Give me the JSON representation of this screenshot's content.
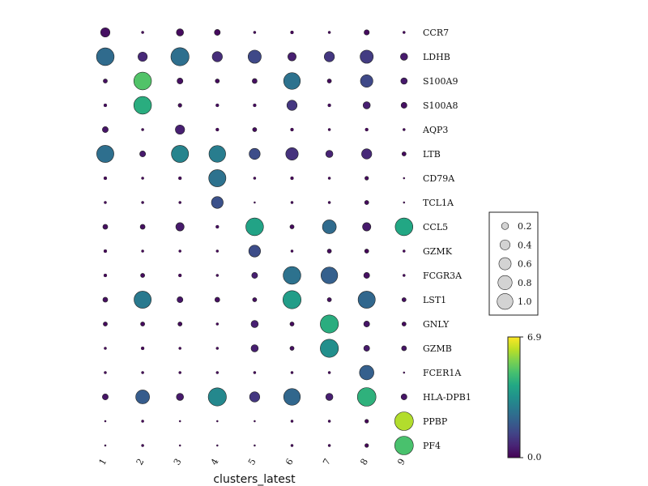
{
  "chart_data": {
    "type": "dotplot",
    "xlabel": "clusters_latest",
    "categories": [
      "1",
      "2",
      "3",
      "4",
      "5",
      "6",
      "7",
      "8",
      "9"
    ],
    "genes": [
      "CCR7",
      "LDHB",
      "S100A9",
      "S100A8",
      "AQP3",
      "LTB",
      "CD79A",
      "TCL1A",
      "CCL5",
      "GZMK",
      "FCGR3A",
      "LST1",
      "GNLY",
      "GZMB",
      "FCER1A",
      "HLA-DPB1",
      "PPBP",
      "PF4"
    ],
    "fraction_expressed": [
      [
        0.25,
        0.02,
        0.15,
        0.1,
        0.02,
        0.03,
        0.02,
        0.08,
        0.02
      ],
      [
        0.9,
        0.25,
        0.95,
        0.3,
        0.5,
        0.2,
        0.3,
        0.5,
        0.15
      ],
      [
        0.05,
        0.9,
        0.1,
        0.05,
        0.07,
        0.8,
        0.05,
        0.45,
        0.12
      ],
      [
        0.03,
        0.9,
        0.04,
        0.03,
        0.03,
        0.3,
        0.03,
        0.15,
        0.1
      ],
      [
        0.1,
        0.02,
        0.25,
        0.03,
        0.05,
        0.03,
        0.02,
        0.03,
        0.02
      ],
      [
        0.85,
        0.1,
        0.85,
        0.8,
        0.35,
        0.45,
        0.15,
        0.3,
        0.05
      ],
      [
        0.03,
        0.02,
        0.03,
        0.85,
        0.02,
        0.03,
        0.02,
        0.04,
        0.01
      ],
      [
        0.02,
        0.02,
        0.02,
        0.4,
        0.01,
        0.02,
        0.02,
        0.05,
        0.01
      ],
      [
        0.07,
        0.07,
        0.2,
        0.03,
        0.9,
        0.05,
        0.55,
        0.2,
        0.9
      ],
      [
        0.03,
        0.02,
        0.02,
        0.02,
        0.4,
        0.02,
        0.05,
        0.05,
        0.02
      ],
      [
        0.03,
        0.05,
        0.03,
        0.02,
        0.1,
        0.9,
        0.8,
        0.1,
        0.02
      ],
      [
        0.07,
        0.85,
        0.1,
        0.07,
        0.05,
        0.95,
        0.05,
        0.85,
        0.05
      ],
      [
        0.05,
        0.05,
        0.05,
        0.02,
        0.15,
        0.05,
        0.95,
        0.1,
        0.05
      ],
      [
        0.02,
        0.03,
        0.02,
        0.02,
        0.15,
        0.05,
        0.95,
        0.1,
        0.07
      ],
      [
        0.02,
        0.02,
        0.02,
        0.02,
        0.02,
        0.02,
        0.02,
        0.6,
        0.01
      ],
      [
        0.1,
        0.55,
        0.15,
        0.95,
        0.3,
        0.8,
        0.15,
        1.0,
        0.1
      ],
      [
        0.01,
        0.02,
        0.01,
        0.01,
        0.01,
        0.02,
        0.02,
        0.04,
        1.0
      ],
      [
        0.01,
        0.02,
        0.01,
        0.01,
        0.01,
        0.02,
        0.02,
        0.04,
        1.0
      ]
    ],
    "mean_expression": [
      [
        0.3,
        0.1,
        0.2,
        0.2,
        0.1,
        0.1,
        0.1,
        0.2,
        0.1
      ],
      [
        2.4,
        0.8,
        2.5,
        0.9,
        1.5,
        0.6,
        1.1,
        1.2,
        0.5
      ],
      [
        0.3,
        5.0,
        0.3,
        0.2,
        0.3,
        2.6,
        0.2,
        1.5,
        0.5
      ],
      [
        0.2,
        4.3,
        0.2,
        0.2,
        0.2,
        1.1,
        0.2,
        0.6,
        0.3
      ],
      [
        0.4,
        0.1,
        0.6,
        0.1,
        0.2,
        0.1,
        0.1,
        0.1,
        0.1
      ],
      [
        2.5,
        0.5,
        3.1,
        2.9,
        1.6,
        1.0,
        0.7,
        0.8,
        0.2
      ],
      [
        0.1,
        0.1,
        0.1,
        2.6,
        0.1,
        0.1,
        0.1,
        0.2,
        0.1
      ],
      [
        0.1,
        0.1,
        0.1,
        1.7,
        0.1,
        0.1,
        0.1,
        0.2,
        0.1
      ],
      [
        0.3,
        0.3,
        0.5,
        0.2,
        4.0,
        0.2,
        2.4,
        0.5,
        4.1
      ],
      [
        0.1,
        0.1,
        0.1,
        0.1,
        1.6,
        0.1,
        0.2,
        0.1,
        0.1
      ],
      [
        0.1,
        0.2,
        0.1,
        0.1,
        0.6,
        2.6,
        2.1,
        0.3,
        0.1
      ],
      [
        0.3,
        2.8,
        0.4,
        0.3,
        0.3,
        3.8,
        0.3,
        2.3,
        0.3
      ],
      [
        0.2,
        0.2,
        0.2,
        0.1,
        0.6,
        0.2,
        4.3,
        0.4,
        0.2
      ],
      [
        0.1,
        0.1,
        0.1,
        0.1,
        0.6,
        0.3,
        3.4,
        0.5,
        0.4
      ],
      [
        0.1,
        0.1,
        0.1,
        0.1,
        0.1,
        0.1,
        0.1,
        2.1,
        0.1
      ],
      [
        0.4,
        2.0,
        0.5,
        3.2,
        1.1,
        2.3,
        0.6,
        4.4,
        0.4
      ],
      [
        0.1,
        0.1,
        0.1,
        0.1,
        0.1,
        0.1,
        0.1,
        0.1,
        6.1
      ],
      [
        0.1,
        0.1,
        0.1,
        0.1,
        0.1,
        0.1,
        0.1,
        0.1,
        4.9
      ]
    ],
    "size_legend": {
      "values": [
        0.2,
        0.4,
        0.6,
        0.8,
        1.0
      ],
      "labels": [
        "0.2",
        "0.4",
        "0.6",
        "0.8",
        "1.0"
      ]
    },
    "colorbar": {
      "min": 0.0,
      "max": 6.9,
      "min_label": "0.0",
      "max_label": "6.9",
      "colormap": "viridis"
    },
    "colors": {
      "dot_edge": "#222222",
      "legend_dot_fill": "#d3d3d3",
      "viridis": [
        "#440154",
        "#482475",
        "#414487",
        "#355f8d",
        "#2a788e",
        "#21918c",
        "#22a884",
        "#44bf70",
        "#7ad151",
        "#bddf26",
        "#fde725"
      ]
    }
  }
}
